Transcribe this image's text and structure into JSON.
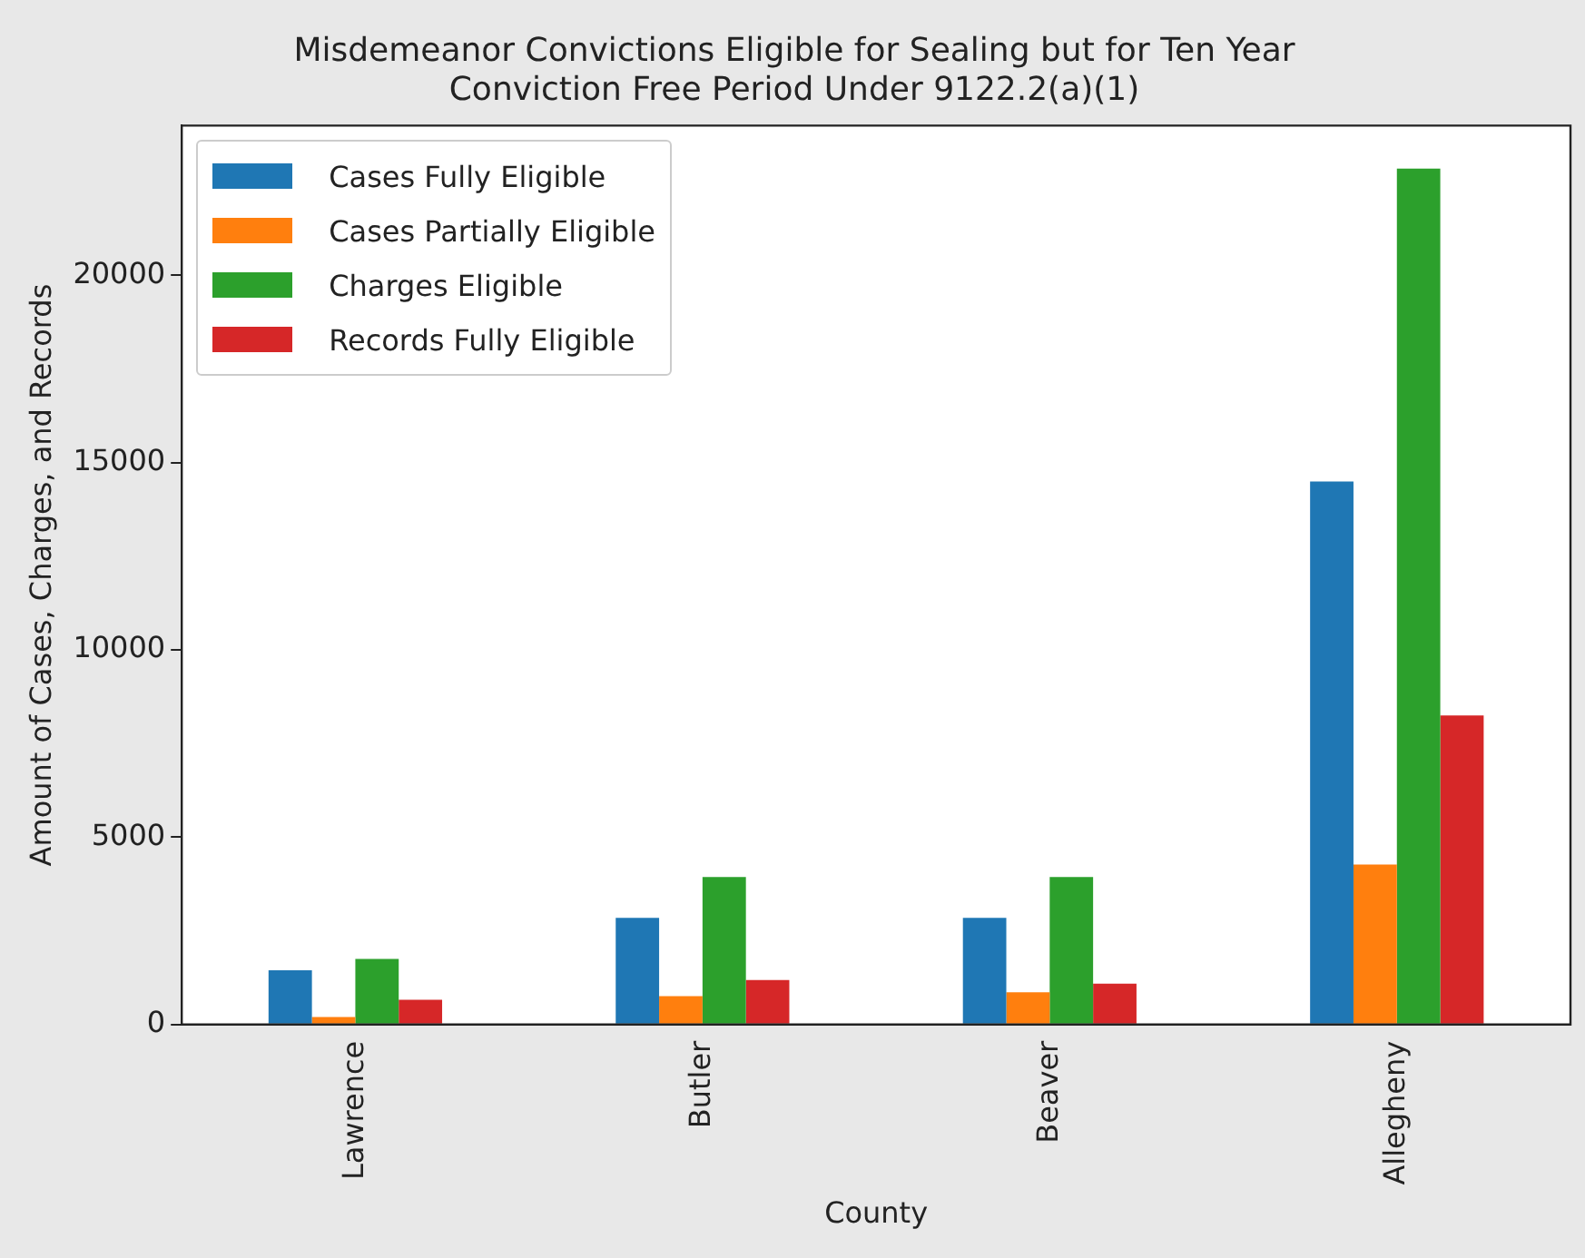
{
  "chart_data": {
    "type": "bar",
    "title": "Misdemeanor Convictions Eligible for Sealing but for Ten Year\nConviction Free Period Under 9122.2(a)(1)",
    "xlabel": "County",
    "ylabel": "Amount of Cases, Charges, and Records",
    "categories": [
      "Lawrence",
      "Butler",
      "Beaver",
      "Allegheny"
    ],
    "series": [
      {
        "name": "Cases Fully Eligible",
        "color": "#1f77b4",
        "values": [
          1450,
          2850,
          2850,
          14500
        ]
      },
      {
        "name": "Cases Partially Eligible",
        "color": "#ff7f0e",
        "values": [
          200,
          760,
          860,
          4270
        ]
      },
      {
        "name": "Charges Eligible",
        "color": "#2ca02c",
        "values": [
          1750,
          3940,
          3940,
          22850
        ]
      },
      {
        "name": "Records Fully Eligible",
        "color": "#d62728",
        "values": [
          660,
          1190,
          1090,
          8250
        ]
      }
    ],
    "ylim": [
      0,
      24000
    ],
    "yticks": [
      0,
      5000,
      10000,
      15000,
      20000
    ],
    "grid": false,
    "legend": "top left"
  }
}
